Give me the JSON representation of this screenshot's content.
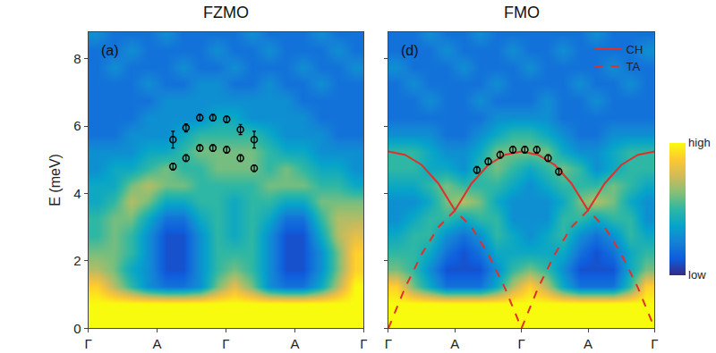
{
  "chart_data": [
    {
      "type": "heatmap",
      "title": "FZMO",
      "annotations": [
        "(a)"
      ],
      "y_label": "E (meV)",
      "xlim": [
        0,
        4
      ],
      "xticks": [
        {
          "value": 0,
          "label": "Γ"
        },
        {
          "value": 1,
          "label": "A"
        },
        {
          "value": 2,
          "label": "Γ"
        },
        {
          "value": 3,
          "label": "A"
        },
        {
          "value": 4,
          "label": "Γ"
        }
      ],
      "ylim": [
        0,
        8.8
      ],
      "yticks": [
        0,
        2,
        4,
        6,
        8
      ],
      "grid": false,
      "heatmap": {
        "x": [
          0.125,
          0.375,
          0.625,
          0.875,
          1.125,
          1.375,
          1.625,
          1.875,
          2.125,
          2.375,
          2.625,
          2.875,
          3.125,
          3.375,
          3.625,
          3.875
        ],
        "y": [
          0.25,
          0.75,
          1.25,
          1.75,
          2.25,
          2.75,
          3.25,
          3.75,
          4.25,
          4.75,
          5.25,
          5.75,
          6.25,
          6.75,
          7.25,
          7.75,
          8.25,
          8.75
        ],
        "z": [
          [
            10,
            10,
            10,
            10,
            10,
            10,
            10,
            10,
            10,
            10,
            10,
            10,
            10,
            10,
            10,
            10
          ],
          [
            10,
            10,
            10,
            10,
            10,
            10,
            10,
            10,
            10,
            10,
            10,
            10,
            10,
            10,
            10,
            10
          ],
          [
            9,
            7,
            5,
            3,
            2,
            2,
            3,
            6,
            8,
            6,
            3,
            2,
            2,
            4,
            7,
            10
          ],
          [
            7,
            6,
            4,
            3,
            1,
            1,
            3,
            5,
            6,
            5,
            3,
            1,
            1,
            3,
            6,
            9
          ],
          [
            6,
            6,
            5,
            3,
            1,
            1,
            3,
            5,
            5,
            5,
            3,
            1,
            1,
            3,
            6,
            9
          ],
          [
            5,
            6,
            5,
            3,
            1,
            1,
            3,
            5,
            4,
            5,
            3,
            1,
            1,
            4,
            7,
            8
          ],
          [
            5,
            6,
            6,
            4,
            2,
            2,
            4,
            5,
            4,
            5,
            4,
            2,
            2,
            5,
            7,
            7
          ],
          [
            4,
            5,
            7,
            6,
            4,
            4,
            5,
            5,
            4,
            5,
            5,
            4,
            4,
            6,
            6,
            6
          ],
          [
            4,
            4,
            6,
            7,
            6,
            6,
            5,
            5,
            5,
            5,
            6,
            6,
            6,
            5,
            5,
            4
          ],
          [
            3,
            4,
            4,
            5,
            6,
            5,
            5,
            6,
            6,
            6,
            5,
            6,
            5,
            4,
            4,
            3
          ],
          [
            3,
            3,
            3,
            4,
            4,
            5,
            6,
            6,
            6,
            6,
            5,
            4,
            4,
            3,
            3,
            3
          ],
          [
            2,
            2,
            3,
            3,
            3,
            4,
            5,
            5,
            5,
            5,
            4,
            3,
            3,
            3,
            2,
            2
          ],
          [
            2,
            2,
            2,
            3,
            3,
            3,
            3,
            4,
            4,
            3,
            3,
            3,
            3,
            2,
            2,
            2
          ],
          [
            2,
            2,
            2,
            2,
            3,
            3,
            3,
            3,
            3,
            3,
            3,
            3,
            2,
            2,
            2,
            2
          ],
          [
            2,
            2,
            2,
            3,
            2,
            2,
            3,
            3,
            2,
            2,
            3,
            2,
            2,
            3,
            2,
            2
          ],
          [
            2,
            3,
            2,
            2,
            2,
            3,
            2,
            2,
            3,
            2,
            2,
            2,
            3,
            2,
            2,
            3
          ],
          [
            2,
            2,
            3,
            2,
            2,
            2,
            2,
            3,
            2,
            2,
            3,
            2,
            2,
            2,
            3,
            2
          ],
          [
            3,
            2,
            2,
            2,
            3,
            2,
            2,
            2,
            2,
            3,
            2,
            2,
            2,
            3,
            2,
            2
          ]
        ],
        "zlim": [
          0,
          10
        ],
        "colors": [
          "#352a87",
          "#0f5cdd",
          "#1481d6",
          "#06a4ca",
          "#2eb7a4",
          "#87bf77",
          "#d1bb59",
          "#fec832",
          "#f9fb0e"
        ]
      },
      "series": [
        {
          "type": "scatter",
          "marker": "circle-open",
          "color": "#000000",
          "x": [
            1.23,
            1.42,
            1.62,
            1.81,
            2.01,
            2.21,
            2.41
          ],
          "values": [
            5.6,
            5.95,
            6.25,
            6.25,
            6.2,
            5.9,
            5.6
          ],
          "errors": [
            0.25,
            0.12,
            0.1,
            0.1,
            0.1,
            0.15,
            0.25
          ]
        },
        {
          "type": "scatter",
          "marker": "circle-open",
          "color": "#000000",
          "x": [
            1.23,
            1.42,
            1.62,
            1.81,
            2.01,
            2.21,
            2.41
          ],
          "values": [
            4.8,
            5.05,
            5.35,
            5.35,
            5.3,
            5.05,
            4.75
          ],
          "errors": [
            0.1,
            0.1,
            0.1,
            0.1,
            0.1,
            0.1,
            0.1
          ]
        }
      ]
    },
    {
      "type": "heatmap",
      "title": "FMO",
      "annotations": [
        "(d)"
      ],
      "tick_labels": "x",
      "xlim": [
        0,
        4
      ],
      "xticks": [
        {
          "value": 0,
          "label": "Γ"
        },
        {
          "value": 1,
          "label": "A"
        },
        {
          "value": 2,
          "label": "Γ"
        },
        {
          "value": 3,
          "label": "A"
        },
        {
          "value": 4,
          "label": "Γ"
        }
      ],
      "ylim": [
        0,
        8.8
      ],
      "yticks": [
        0,
        2,
        4,
        6,
        8
      ],
      "grid": false,
      "legend": "upper right",
      "heatmap": {
        "x": [
          0.125,
          0.375,
          0.625,
          0.875,
          1.125,
          1.375,
          1.625,
          1.875,
          2.125,
          2.375,
          2.625,
          2.875,
          3.125,
          3.375,
          3.625,
          3.875
        ],
        "y": [
          0.25,
          0.75,
          1.25,
          1.75,
          2.25,
          2.75,
          3.25,
          3.75,
          4.25,
          4.75,
          5.25,
          5.75,
          6.25,
          6.75,
          7.25,
          7.75,
          8.25,
          8.75
        ],
        "z": [
          [
            10,
            10,
            10,
            10,
            10,
            10,
            10,
            10,
            10,
            10,
            10,
            10,
            10,
            10,
            10,
            10
          ],
          [
            10,
            10,
            10,
            10,
            10,
            10,
            10,
            10,
            10,
            10,
            10,
            10,
            10,
            10,
            10,
            10
          ],
          [
            9,
            6,
            4,
            2,
            2,
            2,
            4,
            7,
            9,
            7,
            4,
            2,
            2,
            2,
            5,
            9
          ],
          [
            6,
            5,
            3,
            1,
            1,
            1,
            3,
            5,
            6,
            5,
            3,
            1,
            1,
            1,
            4,
            6
          ],
          [
            5,
            5,
            4,
            2,
            1,
            2,
            4,
            4,
            4,
            4,
            4,
            2,
            1,
            2,
            4,
            5
          ],
          [
            4,
            5,
            5,
            3,
            2,
            3,
            5,
            4,
            3,
            4,
            5,
            3,
            2,
            3,
            5,
            4
          ],
          [
            3,
            4,
            5,
            5,
            4,
            5,
            5,
            3,
            3,
            3,
            5,
            5,
            4,
            5,
            5,
            3
          ],
          [
            3,
            3,
            4,
            6,
            7,
            6,
            4,
            3,
            3,
            3,
            4,
            6,
            7,
            6,
            4,
            3
          ],
          [
            4,
            4,
            5,
            6,
            5,
            5,
            5,
            4,
            3,
            4,
            5,
            5,
            5,
            6,
            5,
            4
          ],
          [
            5,
            5,
            4,
            4,
            3,
            5,
            6,
            5,
            4,
            5,
            6,
            5,
            3,
            4,
            5,
            5
          ],
          [
            5,
            5,
            4,
            3,
            3,
            4,
            6,
            6,
            6,
            6,
            4,
            3,
            3,
            4,
            5,
            5
          ],
          [
            3,
            3,
            3,
            2,
            2,
            3,
            4,
            5,
            5,
            4,
            3,
            2,
            2,
            3,
            3,
            3
          ],
          [
            2,
            2,
            2,
            2,
            2,
            2,
            3,
            3,
            3,
            3,
            2,
            2,
            2,
            2,
            2,
            2
          ],
          [
            2,
            2,
            3,
            2,
            2,
            3,
            2,
            2,
            2,
            3,
            2,
            2,
            3,
            2,
            2,
            2
          ],
          [
            2,
            3,
            2,
            2,
            2,
            2,
            3,
            2,
            2,
            2,
            2,
            3,
            2,
            2,
            3,
            2
          ],
          [
            3,
            2,
            2,
            2,
            3,
            2,
            2,
            2,
            3,
            2,
            2,
            2,
            2,
            3,
            2,
            2
          ],
          [
            2,
            2,
            2,
            3,
            2,
            2,
            2,
            3,
            2,
            2,
            3,
            2,
            2,
            2,
            2,
            3
          ],
          [
            2,
            2,
            3,
            2,
            2,
            3,
            2,
            2,
            2,
            2,
            2,
            2,
            3,
            2,
            2,
            2
          ]
        ],
        "zlim": [
          0,
          10
        ],
        "zticks": [
          {
            "value": 0,
            "label": "low"
          },
          {
            "value": 10,
            "label": "high"
          }
        ],
        "colors": [
          "#352a87",
          "#0f5cdd",
          "#1481d6",
          "#06a4ca",
          "#2eb7a4",
          "#87bf77",
          "#d1bb59",
          "#fec832",
          "#f9fb0e"
        ]
      },
      "series": [
        {
          "type": "line",
          "name": "CH",
          "color": "#e0302a",
          "line_style": "solid",
          "x": [
            0,
            0.25,
            0.5,
            0.75,
            1,
            1.25,
            1.5,
            1.75,
            2,
            2.25,
            2.5,
            2.75,
            3,
            3.25,
            3.5,
            3.75,
            4
          ],
          "values": [
            5.25,
            5.15,
            4.85,
            4.3,
            3.5,
            4.3,
            4.85,
            5.15,
            5.25,
            5.15,
            4.85,
            4.3,
            3.5,
            4.3,
            4.85,
            5.15,
            5.25
          ]
        },
        {
          "type": "line",
          "name": "TA",
          "color": "#e0302a",
          "line_style": "dash",
          "x": [
            0,
            0.25,
            0.5,
            0.75,
            1,
            1.25,
            1.5,
            1.75,
            2,
            2.25,
            2.5,
            2.75,
            3,
            3.25,
            3.5,
            3.75,
            4
          ],
          "values": [
            0,
            1.2,
            2.2,
            3.0,
            3.5,
            3.0,
            2.2,
            1.2,
            0,
            1.2,
            2.2,
            3.0,
            3.5,
            3.0,
            2.2,
            1.2,
            0
          ]
        },
        {
          "type": "scatter",
          "marker": "circle-open",
          "color": "#000000",
          "x": [
            1.33,
            1.5,
            1.68,
            1.87,
            2.05,
            2.23,
            2.4,
            2.56
          ],
          "values": [
            4.7,
            4.95,
            5.15,
            5.3,
            5.3,
            5.3,
            5.05,
            4.65
          ],
          "errors": [
            0.1,
            0.1,
            0.1,
            0.1,
            0.1,
            0.1,
            0.1,
            0.1
          ]
        }
      ]
    }
  ]
}
